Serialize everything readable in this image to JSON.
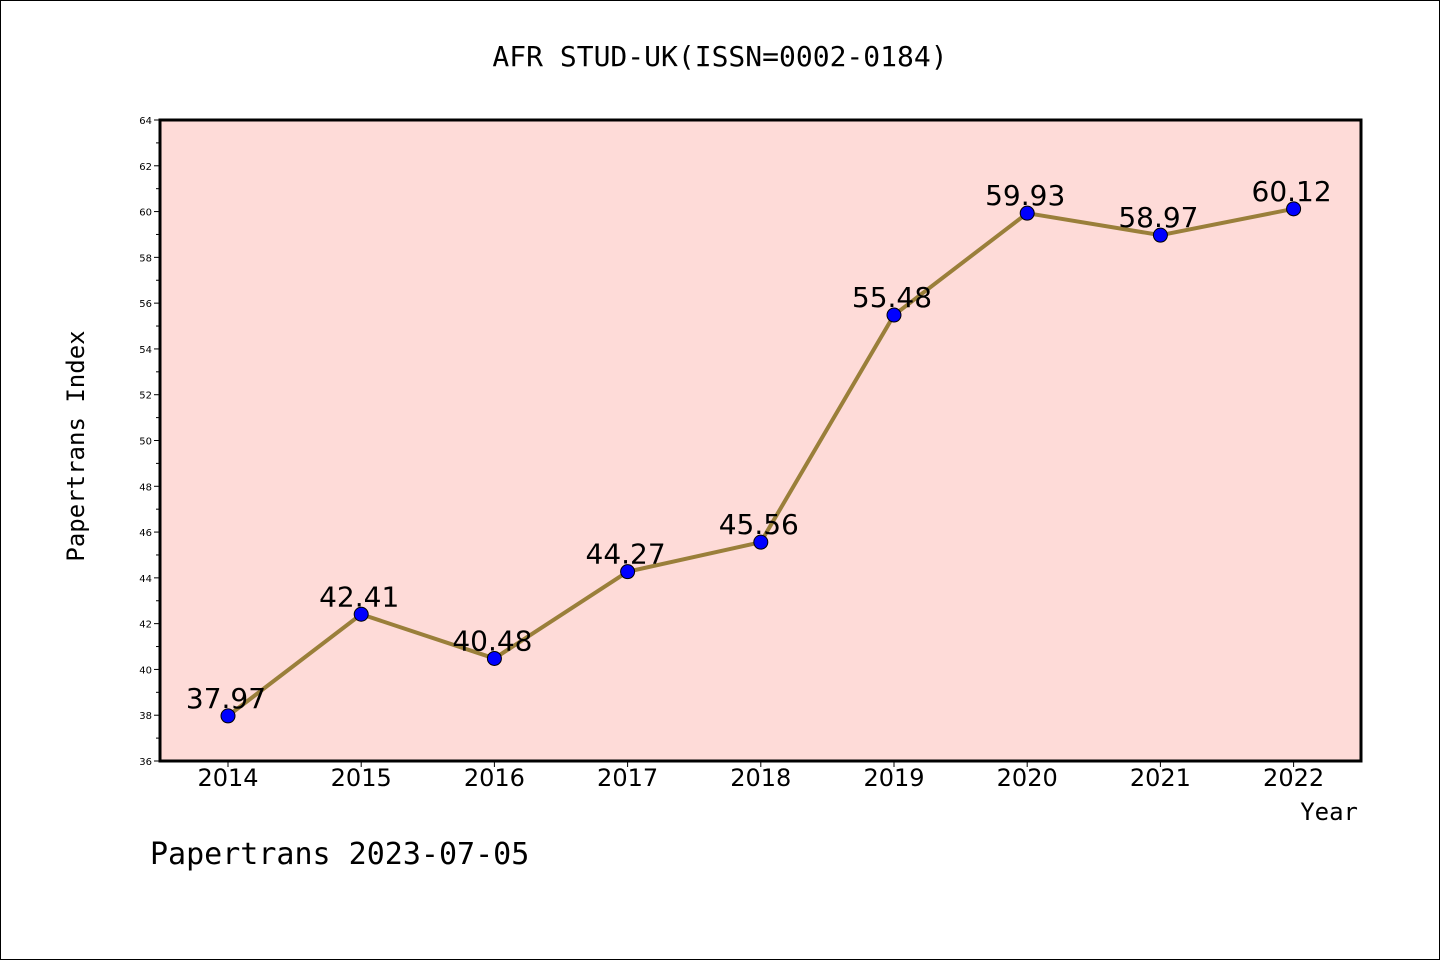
{
  "chart_data": {
    "type": "line",
    "title": "AFR STUD-UK(ISSN=0002-0184)",
    "xlabel": "Year",
    "ylabel": "Papertrans Index",
    "categories": [
      "2014",
      "2015",
      "2016",
      "2017",
      "2018",
      "2019",
      "2020",
      "2021",
      "2022"
    ],
    "series": [
      {
        "values": [
          37.97,
          42.41,
          40.48,
          44.27,
          45.56,
          55.48,
          59.93,
          58.97,
          60.12
        ],
        "data_labels": [
          "37.97",
          "42.41",
          "40.48",
          "44.27",
          "45.56",
          "55.48",
          "59.93",
          "58.97",
          "60.12"
        ]
      }
    ],
    "ylim": [
      36,
      64
    ],
    "y_ticks": [
      "36",
      "38",
      "40",
      "42",
      "44",
      "46",
      "48",
      "50",
      "52",
      "54",
      "56",
      "58",
      "60",
      "62",
      "64"
    ],
    "grid": false,
    "legend": "none",
    "colors": {
      "plot_background": "#fedbd8",
      "line": "#9a7f3a",
      "marker": "#0000ff"
    }
  },
  "footer": {
    "text": "Papertrans 2023-07-05"
  }
}
